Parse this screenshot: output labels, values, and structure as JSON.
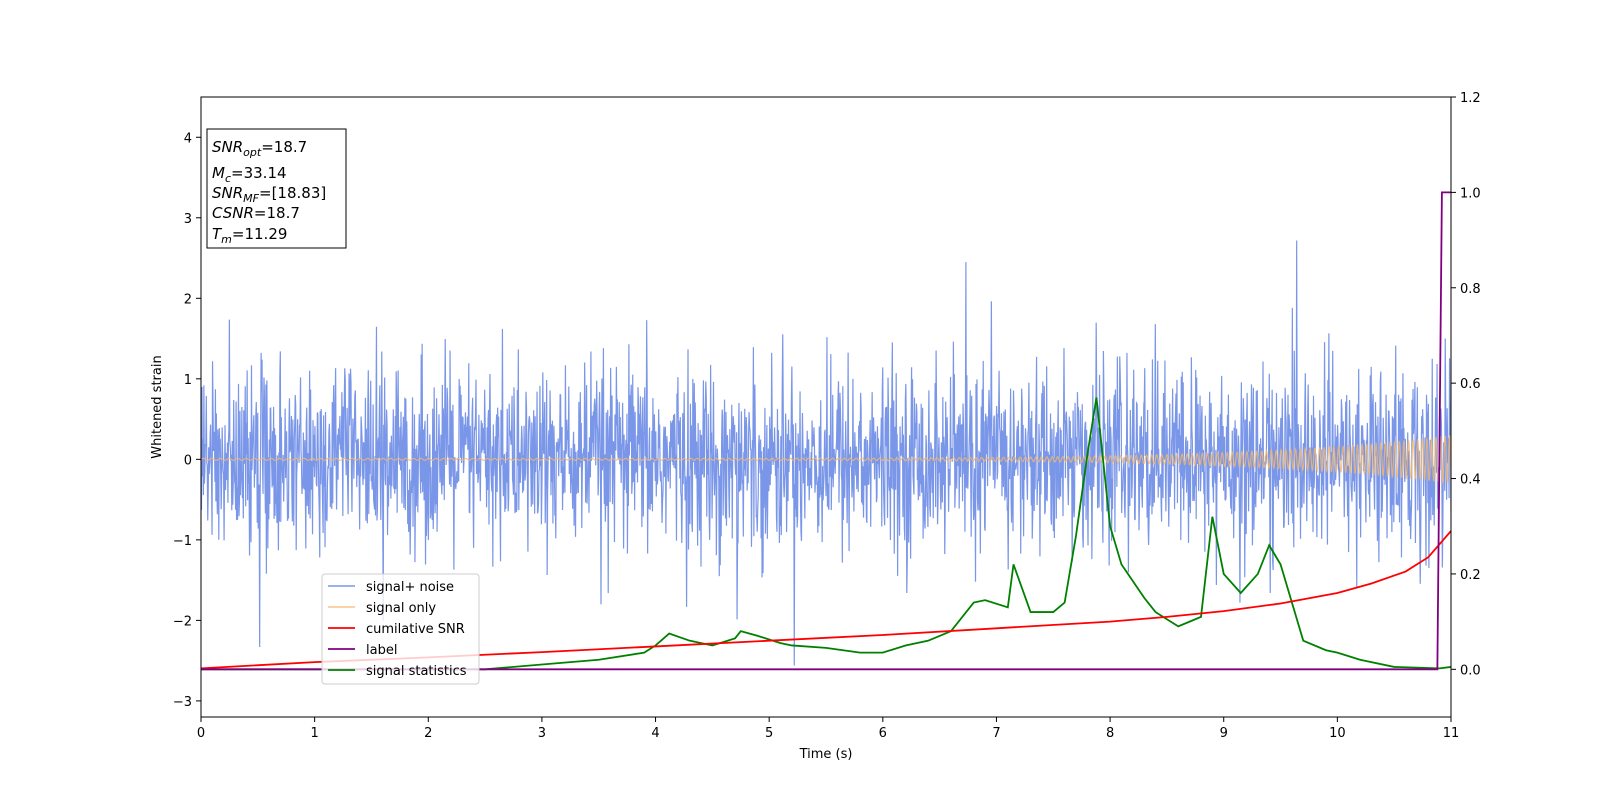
{
  "chart_data": {
    "type": "line",
    "xlabel": "Time (s)",
    "ylabel_left": "Whitened strain",
    "ylabel_right": "",
    "xlim": [
      0,
      11
    ],
    "ylim_left": [
      -3.2,
      4.5
    ],
    "ylim_right": [
      -0.1,
      1.2
    ],
    "x_ticks": [
      0,
      1,
      2,
      3,
      4,
      5,
      6,
      7,
      8,
      9,
      10,
      11
    ],
    "y_left_ticks": [
      -3,
      -2,
      -1,
      0,
      1,
      2,
      3,
      4
    ],
    "y_right_ticks": [
      0.0,
      0.2,
      0.4,
      0.6,
      0.8,
      1.0,
      1.2
    ],
    "grid": false,
    "legend_position": "lower-left",
    "annotation": {
      "lines": [
        {
          "var": "SNR",
          "sub": "opt",
          "value": "=18.7"
        },
        {
          "var": "M",
          "sub": "c",
          "value": "=33.14"
        },
        {
          "var": "SNR",
          "sub": "MF",
          "value": "=[18.83]"
        },
        {
          "var": "CSNR",
          "sub": "",
          "value": "=18.7"
        },
        {
          "var": "T",
          "sub": "m",
          "value": "=11.29"
        }
      ]
    },
    "series": [
      {
        "name": "signal+ noise",
        "color": "#6b8be6",
        "axis": "left",
        "kind": "noisy strain, std ~0.55, range ~[-2.5, 2.7]"
      },
      {
        "name": "signal only",
        "color": "#f5b86b",
        "axis": "left",
        "kind": "chirp, amplitude growing to ~0.3 at t=11"
      },
      {
        "name": "cumilative SNR",
        "color": "#ff0000",
        "axis": "right",
        "x": [
          0,
          1,
          2,
          3,
          4,
          5,
          6,
          7,
          8,
          8.5,
          9,
          9.5,
          10,
          10.3,
          10.6,
          10.8,
          11
        ],
        "y": [
          0.002,
          0.015,
          0.025,
          0.036,
          0.048,
          0.06,
          0.072,
          0.086,
          0.1,
          0.11,
          0.122,
          0.138,
          0.16,
          0.18,
          0.205,
          0.235,
          0.29
        ]
      },
      {
        "name": "label",
        "color": "#800080",
        "axis": "right",
        "x": [
          0,
          10.88,
          10.92,
          11
        ],
        "y": [
          0,
          0,
          1,
          1
        ]
      },
      {
        "name": "signal statistics",
        "color": "#008000",
        "axis": "right",
        "x": [
          0,
          2.5,
          3,
          3.5,
          3.9,
          4.0,
          4.12,
          4.3,
          4.5,
          4.7,
          4.75,
          4.9,
          5.1,
          5.2,
          5.5,
          5.8,
          6.0,
          6.2,
          6.4,
          6.6,
          6.8,
          6.9,
          7.1,
          7.15,
          7.3,
          7.5,
          7.6,
          7.7,
          7.8,
          7.88,
          8.0,
          8.1,
          8.3,
          8.4,
          8.6,
          8.7,
          8.8,
          8.9,
          9.0,
          9.15,
          9.3,
          9.4,
          9.5,
          9.7,
          9.9,
          10.0,
          10.2,
          10.5,
          10.9,
          11
        ],
        "y": [
          0,
          0.0,
          0.01,
          0.02,
          0.035,
          0.05,
          0.075,
          0.06,
          0.05,
          0.065,
          0.08,
          0.07,
          0.055,
          0.05,
          0.045,
          0.035,
          0.035,
          0.05,
          0.06,
          0.08,
          0.14,
          0.145,
          0.13,
          0.22,
          0.12,
          0.12,
          0.14,
          0.28,
          0.45,
          0.57,
          0.3,
          0.22,
          0.15,
          0.12,
          0.09,
          0.1,
          0.11,
          0.32,
          0.2,
          0.16,
          0.2,
          0.26,
          0.22,
          0.06,
          0.04,
          0.035,
          0.02,
          0.005,
          0.002,
          0.005
        ]
      }
    ]
  }
}
